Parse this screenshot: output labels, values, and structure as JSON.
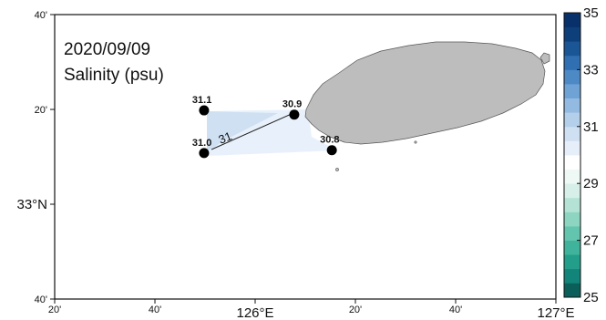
{
  "map": {
    "date": "2020/09/09",
    "variable": "Salinity (psu)",
    "lon_range": [
      125.3333,
      127.0
    ],
    "lat_range": [
      32.6667,
      33.6667
    ],
    "lon_ticks": [
      {
        "value": 125.3333,
        "label": "20'"
      },
      {
        "value": 125.6667,
        "label": "40'"
      },
      {
        "value": 126.0,
        "label": "126°E"
      },
      {
        "value": 126.3333,
        "label": "20'"
      },
      {
        "value": 126.6667,
        "label": "40'"
      },
      {
        "value": 127.0,
        "label": "127°E"
      }
    ],
    "lat_ticks": [
      {
        "value": 33.6667,
        "label": "40'"
      },
      {
        "value": 33.3333,
        "label": "20'"
      },
      {
        "value": 33.0,
        "label": "33°N"
      },
      {
        "value": 32.6667,
        "label": "40'"
      }
    ],
    "stations": [
      {
        "name": "31.1",
        "lon": 125.83,
        "lat": 33.33
      },
      {
        "name": "30.9",
        "lon": 126.13,
        "lat": 33.315
      },
      {
        "name": "31.0",
        "lon": 125.83,
        "lat": 33.18
      },
      {
        "name": "30.8",
        "lon": 126.255,
        "lat": 33.19
      }
    ],
    "contour_label": "31",
    "land_color": "#bdbdbd",
    "colorbar": {
      "min": 25,
      "max": 35,
      "tick_labels": [
        "35",
        "33",
        "31",
        "29",
        "27",
        "25"
      ],
      "colors": [
        "#0b5f5a",
        "#12847a",
        "#229e8b",
        "#3fb39b",
        "#63c5ad",
        "#8dd5c1",
        "#b4e3d5",
        "#d6efe8",
        "#eef8f4",
        "#ffffff",
        "#e6eff9",
        "#cfe0f2",
        "#b3cfea",
        "#93bbe1",
        "#6fa3d5",
        "#4d89c5",
        "#2f6fb2",
        "#1a5596",
        "#0d3f7a",
        "#08306b"
      ]
    }
  }
}
